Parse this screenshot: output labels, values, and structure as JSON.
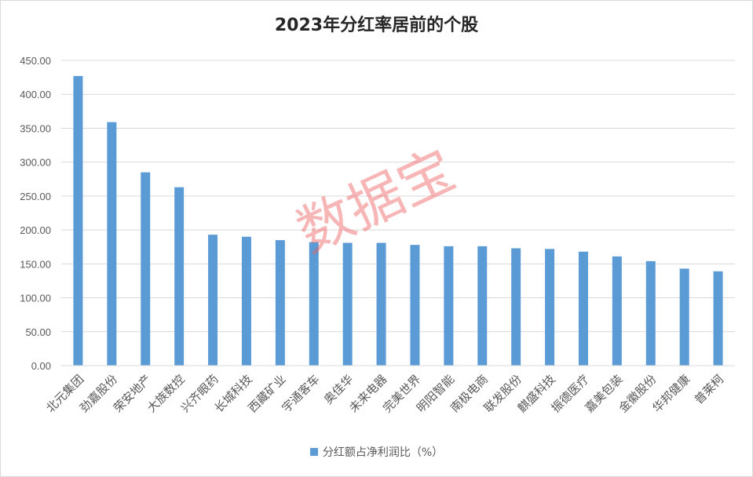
{
  "chart_data": {
    "type": "bar",
    "title": "2023年分红率居前的个股",
    "categories": [
      "北元集团",
      "劲嘉股份",
      "荣安地产",
      "大族数控",
      "兴齐眼药",
      "长城科技",
      "西藏矿业",
      "宇通客车",
      "奥佳华",
      "未来电器",
      "完美世界",
      "明阳智能",
      "南极电商",
      "联发股份",
      "麒盛科技",
      "振德医疗",
      "嘉美包装",
      "金徽股份",
      "华邦健康",
      "普莱柯"
    ],
    "series": [
      {
        "name": "分红额占净利润比（%）",
        "values": [
          427,
          359,
          285,
          263,
          193,
          190,
          185,
          182,
          181,
          181,
          178,
          176,
          176,
          173,
          172,
          168,
          161,
          154,
          143,
          139
        ]
      }
    ],
    "y_ticks": [
      "0.00",
      "50.00",
      "100.00",
      "150.00",
      "200.00",
      "250.00",
      "300.00",
      "350.00",
      "400.00",
      "450.00"
    ],
    "ylim": [
      0,
      450
    ],
    "grid": true,
    "legend_position": "bottom",
    "bar_color": "#5b9bd5",
    "grid_color": "#d9d9d9"
  },
  "watermark": "数据宝"
}
